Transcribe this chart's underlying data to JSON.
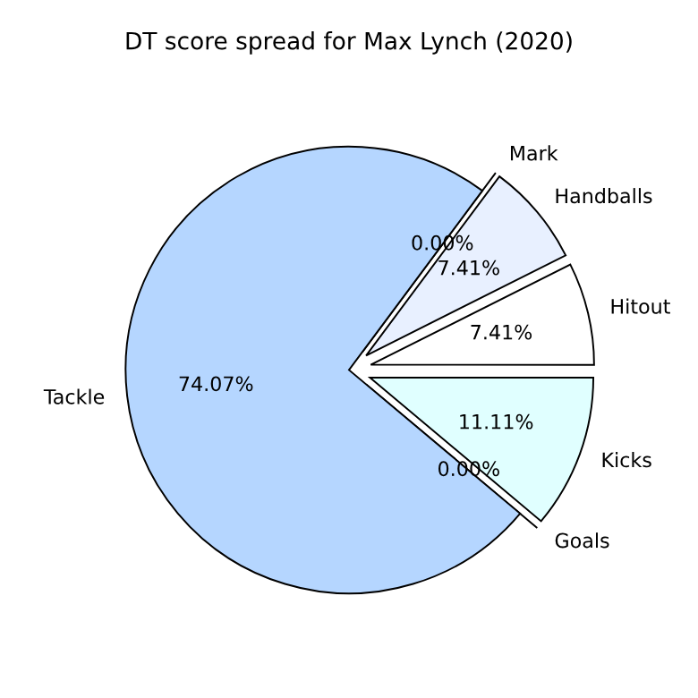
{
  "chart_data": {
    "type": "pie",
    "title": "DT score spread for Max Lynch (2020)",
    "categories": [
      "Goals",
      "Kicks",
      "Hitout",
      "Handballs",
      "Mark",
      "Tackle"
    ],
    "values": [
      0,
      11.11,
      7.41,
      7.41,
      0,
      74.07
    ],
    "value_labels": [
      "0.00%",
      "11.11%",
      "7.41%",
      "7.41%",
      "0.00%",
      "74.07%"
    ],
    "colors": [
      "#ffe4e1",
      "#e0ffff",
      "#ffffff",
      "#e8f0ff",
      "#f0f0ff",
      "#b5d6ff"
    ]
  }
}
